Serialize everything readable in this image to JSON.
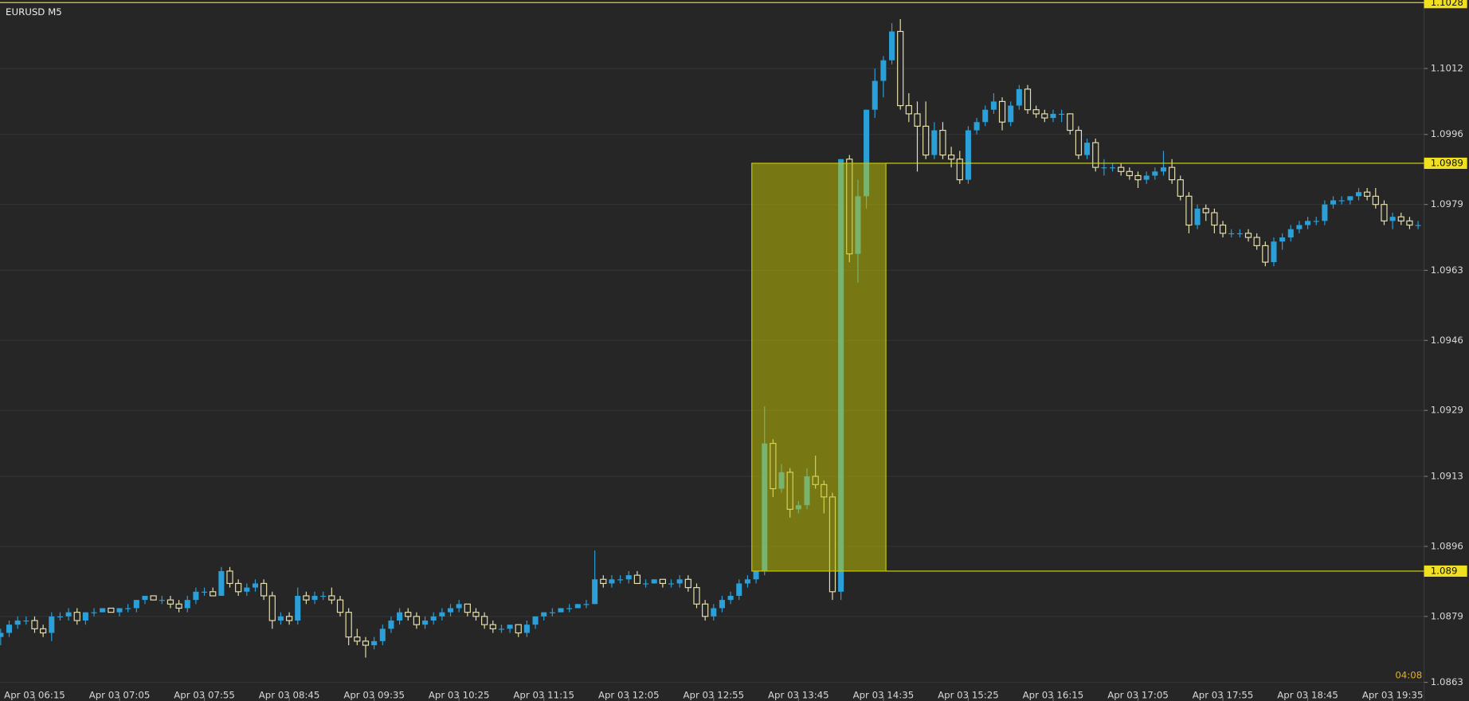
{
  "chart_data": {
    "type": "candlestick",
    "title": "EURUSD M5",
    "countdown": "04:08",
    "xlim": [
      -0.08,
      167.7
    ],
    "ylim": [
      1.08585,
      1.10286
    ],
    "yticks": [
      1.1012,
      1.0996,
      1.0979,
      1.0963,
      1.0946,
      1.0929,
      1.0913,
      1.0896,
      1.0879,
      1.0863
    ],
    "xticks": [
      {
        "value": 4,
        "label": "Apr 03 06:15"
      },
      {
        "value": 14,
        "label": "Apr 03 07:05"
      },
      {
        "value": 24,
        "label": "Apr 03 07:55"
      },
      {
        "value": 34,
        "label": "Apr 03 08:45"
      },
      {
        "value": 44,
        "label": "Apr 03 09:35"
      },
      {
        "value": 54,
        "label": "Apr 03 10:25"
      },
      {
        "value": 64,
        "label": "Apr 03 11:15"
      },
      {
        "value": 74,
        "label": "Apr 03 12:05"
      },
      {
        "value": 84,
        "label": "Apr 03 12:55"
      },
      {
        "value": 94,
        "label": "Apr 03 13:45"
      },
      {
        "value": 104,
        "label": "Apr 03 14:35"
      },
      {
        "value": 114,
        "label": "Apr 03 15:25"
      },
      {
        "value": 124,
        "label": "Apr 03 16:15"
      },
      {
        "value": 134,
        "label": "Apr 03 17:05"
      },
      {
        "value": 144,
        "label": "Apr 03 17:55"
      },
      {
        "value": 154,
        "label": "Apr 03 18:45"
      },
      {
        "value": 164,
        "label": "Apr 03 19:35"
      }
    ],
    "grid": true,
    "up_color": "#2a9fd8",
    "down_color": "#e6dfae",
    "zone": {
      "xlim": [
        88.5,
        104.3
      ],
      "ylim": [
        1.089,
        1.0989
      ],
      "color": "#c8c800"
    },
    "levels": [
      1.1028,
      1.0989,
      1.089
    ],
    "open": [
      1.0874,
      1.0875,
      1.0877,
      1.0878,
      1.0878,
      1.0876,
      1.0875,
      1.0879,
      1.0879,
      1.088,
      1.0878,
      1.088,
      1.088,
      1.0881,
      1.088,
      1.0881,
      1.0881,
      1.0883,
      1.0884,
      1.0883,
      1.0883,
      1.0882,
      1.0881,
      1.0883,
      1.0885,
      1.0885,
      1.0884,
      1.089,
      1.0887,
      1.0885,
      1.0886,
      1.0887,
      1.0884,
      1.0878,
      1.0879,
      1.0878,
      1.0884,
      1.0883,
      1.0884,
      1.0884,
      1.0883,
      1.088,
      1.0874,
      1.0873,
      1.0872,
      1.0873,
      1.0876,
      1.0878,
      1.088,
      1.0879,
      1.0877,
      1.0878,
      1.0879,
      1.088,
      1.0881,
      1.0882,
      1.088,
      1.0879,
      1.0877,
      1.0876,
      1.0876,
      1.0877,
      1.0875,
      1.0877,
      1.0879,
      1.088,
      1.088,
      1.0881,
      1.0881,
      1.0882,
      1.0882,
      1.0888,
      1.0887,
      1.0888,
      1.0888,
      1.0889,
      1.0887,
      1.0887,
      1.0888,
      1.0887,
      1.0887,
      1.0888,
      1.0886,
      1.0882,
      1.0879,
      1.0881,
      1.0883,
      1.0884,
      1.0887,
      1.0888,
      1.089,
      1.0921,
      1.091,
      1.0914,
      1.0905,
      1.0906,
      1.0913,
      1.0911,
      1.0908,
      1.0885,
      1.099,
      1.0967,
      1.0981,
      1.1002,
      1.1009,
      1.1014,
      1.1021,
      1.1003,
      1.1001,
      1.0998,
      1.0991,
      1.0997,
      1.0991,
      1.099,
      1.0985,
      1.0997,
      1.0999,
      1.1002,
      1.1004,
      1.0999,
      1.1003,
      1.1007,
      1.1002,
      1.1001,
      1.1,
      1.1001,
      1.1001,
      1.0997,
      1.0991,
      1.0994,
      1.0988,
      1.0988,
      1.0988,
      1.0987,
      1.0986,
      1.0985,
      1.0986,
      1.0987,
      1.0988,
      1.0985,
      1.0981,
      1.0974,
      1.0978,
      1.0977,
      1.0974,
      1.0972,
      1.0972,
      1.0972,
      1.0971,
      1.0969,
      1.0965,
      1.097,
      1.0971,
      1.0973,
      1.0974,
      1.0975,
      1.0975,
      1.0979,
      1.098,
      1.098,
      1.0981,
      1.0982,
      1.0981,
      1.0979,
      1.0975,
      1.0976,
      1.0975,
      1.0974
    ],
    "high": [
      1.0876,
      1.0878,
      1.0879,
      1.0879,
      1.0879,
      1.0877,
      1.088,
      1.088,
      1.0881,
      1.0881,
      1.088,
      1.0881,
      1.0881,
      1.0881,
      1.0881,
      1.0882,
      1.0883,
      1.0884,
      1.0884,
      1.0884,
      1.0884,
      1.0883,
      1.0884,
      1.0886,
      1.0886,
      1.0886,
      1.0891,
      1.0891,
      1.0888,
      1.0887,
      1.0888,
      1.0888,
      1.0885,
      1.088,
      1.088,
      1.0886,
      1.0885,
      1.0885,
      1.0885,
      1.0886,
      1.0884,
      1.0881,
      1.0876,
      1.0874,
      1.0874,
      1.0877,
      1.0879,
      1.0881,
      1.0881,
      1.088,
      1.0879,
      1.088,
      1.0881,
      1.0882,
      1.0883,
      1.0882,
      1.0881,
      1.088,
      1.0878,
      1.0877,
      1.0877,
      1.0877,
      1.0878,
      1.0879,
      1.088,
      1.0881,
      1.0881,
      1.0882,
      1.0882,
      1.0883,
      1.0895,
      1.0889,
      1.0889,
      1.0889,
      1.089,
      1.089,
      1.0888,
      1.0888,
      1.0888,
      1.0888,
      1.0889,
      1.0889,
      1.0887,
      1.0883,
      1.0882,
      1.0884,
      1.0885,
      1.0888,
      1.0889,
      1.089,
      1.093,
      1.0922,
      1.0916,
      1.0915,
      1.0907,
      1.0915,
      1.0918,
      1.0912,
      1.0909,
      1.099,
      1.0991,
      1.0985,
      1.1002,
      1.1012,
      1.1015,
      1.1023,
      1.1024,
      1.1006,
      1.1004,
      1.1004,
      1.0999,
      1.0999,
      1.0993,
      1.0992,
      1.0998,
      1.1,
      1.1003,
      1.1006,
      1.1005,
      1.1004,
      1.1008,
      1.1008,
      1.1003,
      1.1002,
      1.1002,
      1.1002,
      1.1001,
      1.0998,
      1.0995,
      1.0995,
      1.099,
      1.0989,
      1.0989,
      1.0988,
      1.0987,
      1.0987,
      1.0988,
      1.0992,
      1.099,
      1.0986,
      1.0982,
      1.0979,
      1.0979,
      1.0978,
      1.0975,
      1.0973,
      1.0973,
      1.0973,
      1.0972,
      1.097,
      1.0971,
      1.0972,
      1.0974,
      1.0975,
      1.0976,
      1.0976,
      1.098,
      1.0981,
      1.0981,
      1.0981,
      1.0983,
      1.0983,
      1.0983,
      1.098,
      1.0977,
      1.0977,
      1.0976,
      1.0975
    ],
    "low": [
      1.0872,
      1.0874,
      1.0876,
      1.0877,
      1.0875,
      1.0874,
      1.0873,
      1.0878,
      1.0878,
      1.0877,
      1.0877,
      1.0879,
      1.088,
      1.088,
      1.0879,
      1.088,
      1.088,
      1.0882,
      1.0883,
      1.0882,
      1.0881,
      1.088,
      1.088,
      1.0882,
      1.0884,
      1.0884,
      1.0884,
      1.0886,
      1.0884,
      1.0884,
      1.0885,
      1.0883,
      1.0876,
      1.0877,
      1.0877,
      1.0877,
      1.0882,
      1.0882,
      1.0883,
      1.0882,
      1.0879,
      1.0872,
      1.0872,
      1.0869,
      1.0871,
      1.0872,
      1.0875,
      1.0877,
      1.0878,
      1.0876,
      1.0876,
      1.0877,
      1.0878,
      1.0879,
      1.088,
      1.0879,
      1.0878,
      1.0876,
      1.0875,
      1.0875,
      1.0875,
      1.0874,
      1.0874,
      1.0876,
      1.0878,
      1.0879,
      1.088,
      1.088,
      1.0881,
      1.0881,
      1.0882,
      1.0886,
      1.0886,
      1.0887,
      1.0887,
      1.0887,
      1.0886,
      1.0887,
      1.0886,
      1.0886,
      1.0886,
      1.0885,
      1.0881,
      1.0878,
      1.0878,
      1.088,
      1.0882,
      1.0883,
      1.0886,
      1.0887,
      1.0889,
      1.0908,
      1.0909,
      1.0903,
      1.0904,
      1.0905,
      1.091,
      1.0904,
      1.0883,
      1.0883,
      1.0965,
      1.096,
      1.0978,
      1.1,
      1.1005,
      1.1013,
      1.1002,
      1.0999,
      1.0987,
      1.099,
      1.099,
      1.099,
      1.0988,
      1.0984,
      1.0984,
      1.0996,
      1.0998,
      1.1001,
      1.0997,
      1.0998,
      1.1002,
      1.1001,
      1.1,
      1.0999,
      1.0999,
      1.0999,
      1.0996,
      1.099,
      1.099,
      1.0987,
      1.0986,
      1.0987,
      1.0986,
      1.0985,
      1.0983,
      1.0984,
      1.0985,
      1.0986,
      1.0984,
      1.098,
      1.0972,
      1.0973,
      1.0975,
      1.0972,
      1.0971,
      1.0971,
      1.0971,
      1.097,
      1.0968,
      1.0964,
      1.0964,
      1.0968,
      1.097,
      1.0972,
      1.0973,
      1.0974,
      1.0974,
      1.0978,
      1.0979,
      1.0979,
      1.098,
      1.098,
      1.0978,
      1.0974,
      1.0973,
      1.0974,
      1.0973,
      1.0973
    ],
    "close": [
      1.0875,
      1.0877,
      1.0878,
      1.0878,
      1.0876,
      1.0875,
      1.0879,
      1.0879,
      1.088,
      1.0878,
      1.088,
      1.088,
      1.0881,
      1.088,
      1.0881,
      1.0881,
      1.0883,
      1.0884,
      1.0883,
      1.0883,
      1.0882,
      1.0881,
      1.0883,
      1.0885,
      1.0885,
      1.0884,
      1.089,
      1.0887,
      1.0885,
      1.0886,
      1.0887,
      1.0884,
      1.0878,
      1.0879,
      1.0878,
      1.0884,
      1.0883,
      1.0884,
      1.0884,
      1.0883,
      1.088,
      1.0874,
      1.0873,
      1.0872,
      1.0873,
      1.0876,
      1.0878,
      1.088,
      1.0879,
      1.0877,
      1.0878,
      1.0879,
      1.088,
      1.0881,
      1.0882,
      1.088,
      1.0879,
      1.0877,
      1.0876,
      1.0876,
      1.0877,
      1.0875,
      1.0877,
      1.0879,
      1.088,
      1.088,
      1.0881,
      1.0881,
      1.0882,
      1.0882,
      1.0888,
      1.0887,
      1.0888,
      1.0888,
      1.0889,
      1.0887,
      1.0887,
      1.0888,
      1.0887,
      1.0887,
      1.0888,
      1.0886,
      1.0882,
      1.0879,
      1.0881,
      1.0883,
      1.0884,
      1.0887,
      1.0888,
      1.089,
      1.0921,
      1.091,
      1.0914,
      1.0905,
      1.0906,
      1.0913,
      1.0911,
      1.0908,
      1.0885,
      1.099,
      1.0967,
      1.0981,
      1.1002,
      1.1009,
      1.1014,
      1.1021,
      1.1003,
      1.1001,
      1.0998,
      1.0991,
      1.0997,
      1.0991,
      1.099,
      1.0985,
      1.0997,
      1.0999,
      1.1002,
      1.1004,
      1.0999,
      1.1003,
      1.1007,
      1.1002,
      1.1001,
      1.1,
      1.1001,
      1.1001,
      1.0997,
      1.0991,
      1.0994,
      1.0988,
      1.0988,
      1.0988,
      1.0987,
      1.0986,
      1.0985,
      1.0986,
      1.0987,
      1.0988,
      1.0985,
      1.0981,
      1.0974,
      1.0978,
      1.0977,
      1.0974,
      1.0972,
      1.0972,
      1.0972,
      1.0971,
      1.0969,
      1.0965,
      1.097,
      1.0971,
      1.0973,
      1.0974,
      1.0975,
      1.0975,
      1.0979,
      1.098,
      1.098,
      1.0981,
      1.0982,
      1.0981,
      1.0979,
      1.0975,
      1.0976,
      1.0975,
      1.0974,
      1.0974
    ]
  }
}
